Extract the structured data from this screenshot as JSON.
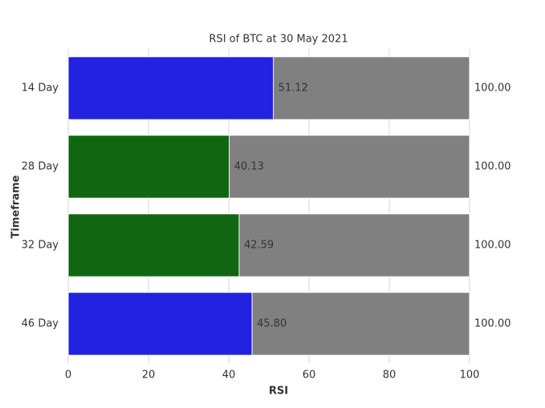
{
  "chart_data": {
    "type": "bar",
    "orientation": "horizontal",
    "title": "RSI of BTC at 30 May 2021",
    "xlabel": "RSI",
    "ylabel": "Timeframe",
    "categories": [
      "14 Day",
      "28 Day",
      "32 Day",
      "46 Day"
    ],
    "series": [
      {
        "color": "#808080",
        "values": [
          100,
          100,
          100,
          100
        ],
        "value_labels": [
          "100.00",
          "100.00",
          "100.00",
          "100.00"
        ]
      },
      {
        "colors": [
          "#2222e0",
          "#116611",
          "#116611",
          "#2222e0"
        ],
        "values": [
          51.12,
          40.13,
          42.59,
          45.8
        ],
        "value_labels": [
          "51.12",
          "40.13",
          "42.59",
          "45.80"
        ]
      }
    ],
    "xlim": [
      0,
      100
    ],
    "xticks": [
      0,
      20,
      40,
      60,
      80,
      100
    ],
    "grid": true
  }
}
